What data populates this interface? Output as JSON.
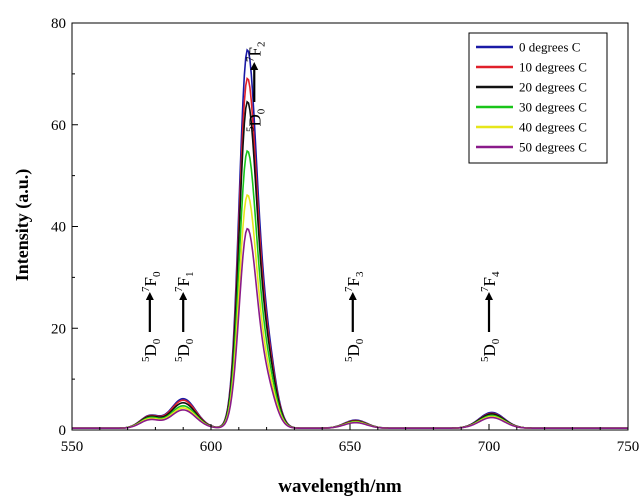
{
  "chart_data": {
    "type": "line",
    "xlabel": "wavelength/nm",
    "ylabel": "Intensity (a.u.)",
    "xlim": [
      550,
      750
    ],
    "ylim": [
      0,
      80
    ],
    "x_ticks": [
      550,
      600,
      650,
      700,
      750
    ],
    "y_ticks": [
      0,
      20,
      40,
      60,
      80
    ],
    "grid": false,
    "legend_position": "top-right",
    "series": [
      {
        "name": "0  degrees C",
        "color": "#1a1aa6",
        "peaks": {
          "578": 2.4,
          "590": 5.8,
          "613": 73.0,
          "652": 1.6,
          "701": 3.1
        }
      },
      {
        "name": "10 degrees C",
        "color": "#e0202a",
        "peaks": {
          "578": 2.3,
          "590": 5.5,
          "613": 67.5,
          "652": 1.5,
          "701": 2.9
        }
      },
      {
        "name": "20 degrees C",
        "color": "#111111",
        "peaks": {
          "578": 2.2,
          "590": 5.0,
          "613": 63.0,
          "652": 1.4,
          "701": 2.8
        }
      },
      {
        "name": "30 degrees C",
        "color": "#19c419",
        "peaks": {
          "578": 2.0,
          "590": 4.4,
          "613": 53.5,
          "652": 1.3,
          "701": 2.5
        }
      },
      {
        "name": "40 degrees C",
        "color": "#e6e61a",
        "peaks": {
          "578": 1.8,
          "590": 4.0,
          "613": 45.0,
          "652": 1.2,
          "701": 2.3
        }
      },
      {
        "name": "50 degrees C",
        "color": "#8a1a8a",
        "peaks": {
          "578": 1.6,
          "590": 3.6,
          "613": 38.5,
          "652": 1.1,
          "701": 2.1
        }
      }
    ],
    "annotations": [
      {
        "lower": "D",
        "lower_sup": "5",
        "lower_sub": "0",
        "upper": "F",
        "upper_sup": "7",
        "upper_sub": "0",
        "x": 578
      },
      {
        "lower": "D",
        "lower_sup": "5",
        "lower_sub": "0",
        "upper": "F",
        "upper_sup": "7",
        "upper_sub": "1",
        "x": 590
      },
      {
        "lower": "D",
        "lower_sup": "5",
        "lower_sub": "0",
        "upper": "F",
        "upper_sup": "7",
        "upper_sub": "2",
        "x": 617
      },
      {
        "lower": "D",
        "lower_sup": "5",
        "lower_sub": "0",
        "upper": "F",
        "upper_sup": "7",
        "upper_sub": "3",
        "x": 651
      },
      {
        "lower": "D",
        "lower_sup": "5",
        "lower_sub": "0",
        "upper": "F",
        "upper_sup": "7",
        "upper_sub": "4",
        "x": 700
      }
    ]
  }
}
